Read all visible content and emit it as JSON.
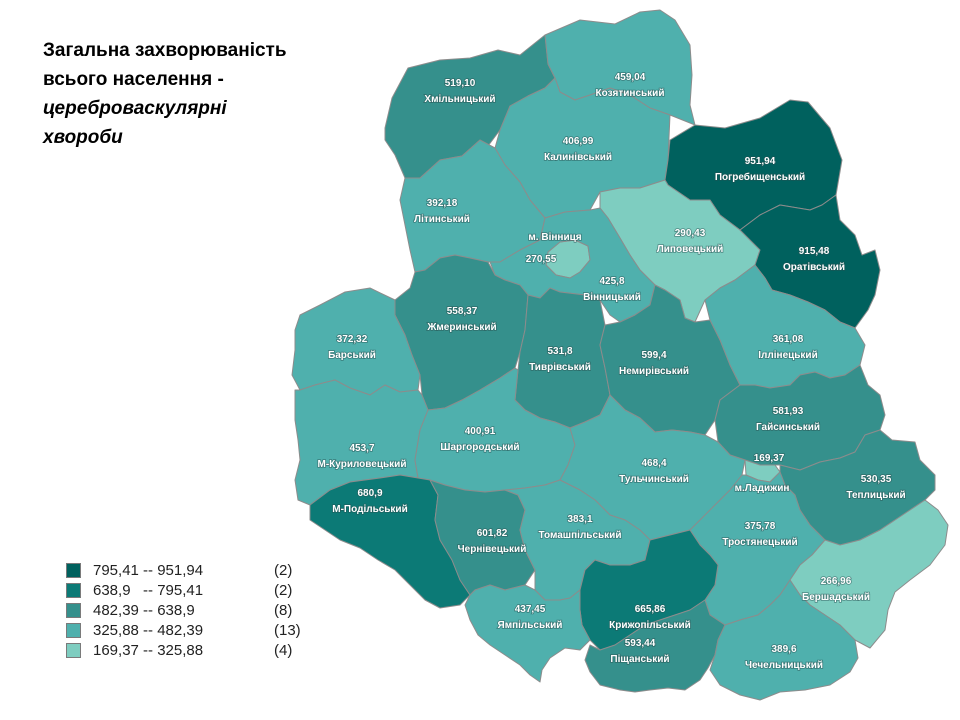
{
  "title": {
    "line1": "Загальна захворюваність",
    "line2": "всього населення -",
    "line3": "цереброваскулярні",
    "line4": "хвороби"
  },
  "legend": [
    {
      "range": "795,41 -- 951,94",
      "count": "(2)",
      "color": "#00615e"
    },
    {
      "range": "638,9   -- 795,41",
      "count": "(2)",
      "color": "#0c7a76"
    },
    {
      "range": "482,39 -- 638,9",
      "count": "(8)",
      "color": "#35908c"
    },
    {
      "range": "325,88 -- 482,39",
      "count": "(13)",
      "color": "#4fb0ad"
    },
    {
      "range": "169,37 -- 325,88",
      "count": "(4)",
      "color": "#7ecdc0"
    }
  ],
  "regions": [
    {
      "id": "khmilnytskyi",
      "value": "519,10",
      "name": "Хмільницький",
      "color": "#35908c"
    },
    {
      "id": "koziatynskyi",
      "value": "459,04",
      "name": "Козятинський",
      "color": "#4fb0ad"
    },
    {
      "id": "kalynivskyi",
      "value": "406,99",
      "name": "Калинівський",
      "color": "#4fb0ad"
    },
    {
      "id": "pohrebyshchenskyi",
      "value": "951,94",
      "name": "Погребищенський",
      "color": "#00615e"
    },
    {
      "id": "lityn",
      "value": "392,18",
      "name": "Літинський",
      "color": "#4fb0ad"
    },
    {
      "id": "vinnytsia-city",
      "value": "270,55",
      "name": "м. Вінниця",
      "color": "#7ecdc0"
    },
    {
      "id": "lypovetskyi",
      "value": "290,43",
      "name": "Липовецький",
      "color": "#7ecdc0"
    },
    {
      "id": "orativskyi",
      "value": "915,48",
      "name": "Оратівський",
      "color": "#00615e"
    },
    {
      "id": "vinnytskyi",
      "value": "425,8",
      "name": "Вінницький",
      "color": "#4fb0ad"
    },
    {
      "id": "zhmerynskyi",
      "value": "558,37",
      "name": "Жмеринський",
      "color": "#35908c"
    },
    {
      "id": "barskyi",
      "value": "372,32",
      "name": "Барський",
      "color": "#4fb0ad"
    },
    {
      "id": "tyvrivskyi",
      "value": "531,8",
      "name": "Тиврівський",
      "color": "#35908c"
    },
    {
      "id": "nemyrivskyi",
      "value": "599,4",
      "name": "Немирівський",
      "color": "#35908c"
    },
    {
      "id": "illinetskyi",
      "value": "361,08",
      "name": "Іллінецький",
      "color": "#4fb0ad"
    },
    {
      "id": "haisynskyi",
      "value": "581,93",
      "name": "Гайсинський",
      "color": "#35908c"
    },
    {
      "id": "m-kurylovetskyi",
      "value": "453,7",
      "name": "М-Куриловецький",
      "color": "#4fb0ad"
    },
    {
      "id": "sharhorodskyi",
      "value": "400,91",
      "name": "Шаргородський",
      "color": "#4fb0ad"
    },
    {
      "id": "tulchynskyi",
      "value": "468,4",
      "name": "Тульчинський",
      "color": "#4fb0ad"
    },
    {
      "id": "ladyzhyn",
      "value": "169,37",
      "name": "м.Ладижин",
      "color": "#7ecdc0"
    },
    {
      "id": "teplytskyi",
      "value": "530,35",
      "name": "Теплицький",
      "color": "#35908c"
    },
    {
      "id": "m-podilskyi",
      "value": "680,9",
      "name": "М-Подільський",
      "color": "#0c7a76"
    },
    {
      "id": "chernivetskyi",
      "value": "601,82",
      "name": "Чернівецький",
      "color": "#35908c"
    },
    {
      "id": "tomashpilskyi",
      "value": "383,1",
      "name": "Томашпільський",
      "color": "#4fb0ad"
    },
    {
      "id": "trostianetskyi",
      "value": "375,78",
      "name": "Тростянецький",
      "color": "#4fb0ad"
    },
    {
      "id": "bershadskyi",
      "value": "266,96",
      "name": "Бершадський",
      "color": "#7ecdc0"
    },
    {
      "id": "kryzhopilskyi",
      "value": "665,86",
      "name": "Крижопільський",
      "color": "#0c7a76"
    },
    {
      "id": "yampilskyi",
      "value": "437,45",
      "name": "Ямпільський",
      "color": "#4fb0ad"
    },
    {
      "id": "pishchanskyi",
      "value": "593,44",
      "name": "Піщанський",
      "color": "#35908c"
    },
    {
      "id": "chechelnytskyi",
      "value": "389,6",
      "name": "Чечельницький",
      "color": "#4fb0ad"
    }
  ]
}
